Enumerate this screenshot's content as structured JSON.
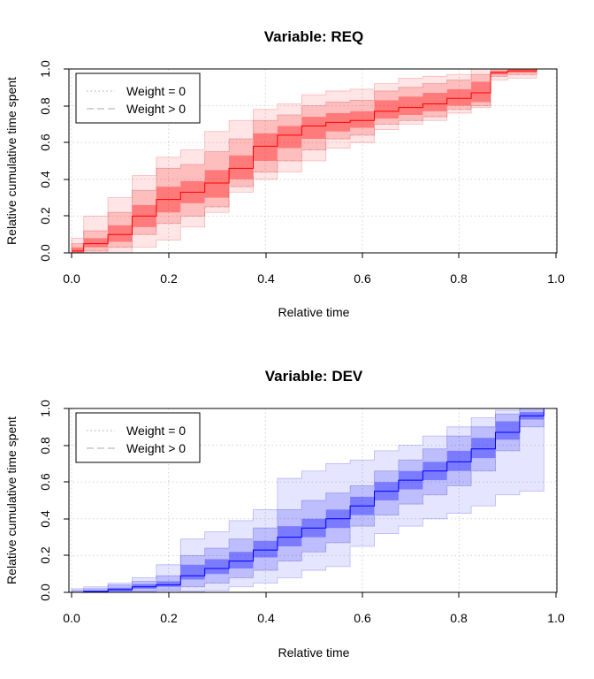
{
  "chart_data": [
    {
      "type": "area",
      "title": "Variable: REQ",
      "xlabel": "Relative time",
      "ylabel": "Relative cumulative time spent",
      "xlim": [
        0,
        1
      ],
      "ylim": [
        0,
        1
      ],
      "x_ticks": [
        "0.0",
        "0.2",
        "0.4",
        "0.6",
        "0.8",
        "1.0"
      ],
      "y_ticks": [
        "0.0",
        "0.2",
        "0.4",
        "0.6",
        "0.8",
        "1.0"
      ],
      "grid": true,
      "legend_position": "top-left",
      "legend": [
        {
          "label": "Weight = 0",
          "style": "dotted",
          "color": "#bbbbbb"
        },
        {
          "label": "Weight > 0",
          "style": "dashed",
          "color": "#bbbbbb"
        }
      ],
      "color": "#ff0000",
      "x": [
        0,
        0.05,
        0.1,
        0.15,
        0.2,
        0.25,
        0.3,
        0.35,
        0.4,
        0.45,
        0.5,
        0.55,
        0.6,
        0.65,
        0.7,
        0.75,
        0.8,
        0.85,
        0.88,
        0.92,
        1.0
      ],
      "median": [
        0.01,
        0.05,
        0.1,
        0.2,
        0.29,
        0.33,
        0.38,
        0.46,
        0.58,
        0.64,
        0.69,
        0.71,
        0.72,
        0.77,
        0.79,
        0.81,
        0.84,
        0.87,
        0.98,
        0.99,
        1.0
      ],
      "band_inner": {
        "lower": [
          0,
          0.03,
          0.06,
          0.14,
          0.22,
          0.27,
          0.3,
          0.4,
          0.5,
          0.57,
          0.62,
          0.66,
          0.68,
          0.73,
          0.75,
          0.77,
          0.8,
          0.82,
          0.97,
          0.98,
          1.0
        ],
        "upper": [
          0.03,
          0.08,
          0.15,
          0.26,
          0.36,
          0.39,
          0.45,
          0.53,
          0.65,
          0.69,
          0.74,
          0.76,
          0.77,
          0.83,
          0.85,
          0.87,
          0.89,
          0.93,
          0.99,
          1.0,
          1.0
        ]
      },
      "band_middle": {
        "lower": [
          0,
          0.01,
          0.03,
          0.1,
          0.16,
          0.2,
          0.25,
          0.36,
          0.44,
          0.5,
          0.56,
          0.62,
          0.64,
          0.7,
          0.72,
          0.74,
          0.78,
          0.8,
          0.96,
          0.97,
          1.0
        ],
        "upper": [
          0.05,
          0.12,
          0.22,
          0.34,
          0.46,
          0.48,
          0.55,
          0.62,
          0.72,
          0.75,
          0.8,
          0.82,
          0.83,
          0.88,
          0.9,
          0.92,
          0.94,
          0.97,
          1.0,
          1.0,
          1.0
        ]
      },
      "band_outer": {
        "lower": [
          0,
          0,
          0,
          0.03,
          0.07,
          0.14,
          0.22,
          0.33,
          0.4,
          0.44,
          0.5,
          0.57,
          0.6,
          0.67,
          0.7,
          0.72,
          0.76,
          0.79,
          0.94,
          0.95,
          1.0
        ],
        "upper": [
          0.08,
          0.2,
          0.3,
          0.42,
          0.52,
          0.56,
          0.66,
          0.72,
          0.78,
          0.81,
          0.86,
          0.88,
          0.89,
          0.92,
          0.95,
          0.96,
          0.97,
          1.0,
          1.0,
          1.0,
          1.0
        ]
      }
    },
    {
      "type": "area",
      "title": "Variable: DEV",
      "xlabel": "Relative time",
      "ylabel": "Relative cumulative time spent",
      "xlim": [
        0,
        1
      ],
      "ylim": [
        0,
        1
      ],
      "x_ticks": [
        "0.0",
        "0.2",
        "0.4",
        "0.6",
        "0.8",
        "1.0"
      ],
      "y_ticks": [
        "0.0",
        "0.2",
        "0.4",
        "0.6",
        "0.8",
        "1.0"
      ],
      "grid": true,
      "legend_position": "top-left",
      "legend": [
        {
          "label": "Weight = 0",
          "style": "dotted",
          "color": "#bbbbbb"
        },
        {
          "label": "Weight > 0",
          "style": "dashed",
          "color": "#bbbbbb"
        }
      ],
      "color": "#0000ff",
      "x": [
        0,
        0.05,
        0.1,
        0.15,
        0.2,
        0.25,
        0.3,
        0.35,
        0.4,
        0.45,
        0.5,
        0.55,
        0.6,
        0.65,
        0.7,
        0.75,
        0.8,
        0.85,
        0.9,
        0.95,
        1.0
      ],
      "median": [
        0,
        0.005,
        0.015,
        0.03,
        0.04,
        0.09,
        0.13,
        0.17,
        0.23,
        0.3,
        0.35,
        0.4,
        0.47,
        0.55,
        0.61,
        0.66,
        0.71,
        0.78,
        0.87,
        0.96,
        1.0
      ],
      "band_inner": {
        "lower": [
          0,
          0,
          0.005,
          0.02,
          0.03,
          0.07,
          0.1,
          0.13,
          0.19,
          0.25,
          0.3,
          0.35,
          0.42,
          0.5,
          0.56,
          0.61,
          0.66,
          0.73,
          0.83,
          0.94,
          1.0
        ],
        "upper": [
          0,
          0.01,
          0.025,
          0.045,
          0.06,
          0.15,
          0.18,
          0.22,
          0.28,
          0.36,
          0.4,
          0.45,
          0.52,
          0.6,
          0.66,
          0.71,
          0.77,
          0.84,
          0.93,
          0.98,
          1.0
        ]
      },
      "band_middle": {
        "lower": [
          0,
          0,
          0,
          0.005,
          0.01,
          0.03,
          0.05,
          0.08,
          0.12,
          0.17,
          0.22,
          0.27,
          0.36,
          0.42,
          0.48,
          0.53,
          0.58,
          0.66,
          0.77,
          0.9,
          1.0
        ],
        "upper": [
          0.01,
          0.02,
          0.04,
          0.06,
          0.09,
          0.2,
          0.24,
          0.29,
          0.35,
          0.45,
          0.5,
          0.54,
          0.58,
          0.66,
          0.72,
          0.78,
          0.85,
          0.9,
          0.97,
          1.0,
          1.0
        ]
      },
      "band_outer": {
        "lower": [
          0,
          0,
          0,
          0,
          0,
          0.005,
          0.01,
          0.03,
          0.05,
          0.08,
          0.12,
          0.14,
          0.25,
          0.32,
          0.36,
          0.4,
          0.43,
          0.47,
          0.53,
          0.55,
          1.0
        ],
        "upper": [
          0.02,
          0.03,
          0.05,
          0.08,
          0.15,
          0.29,
          0.33,
          0.39,
          0.45,
          0.62,
          0.66,
          0.7,
          0.72,
          0.77,
          0.8,
          0.85,
          0.9,
          0.95,
          0.99,
          1.0,
          1.0
        ]
      }
    }
  ]
}
